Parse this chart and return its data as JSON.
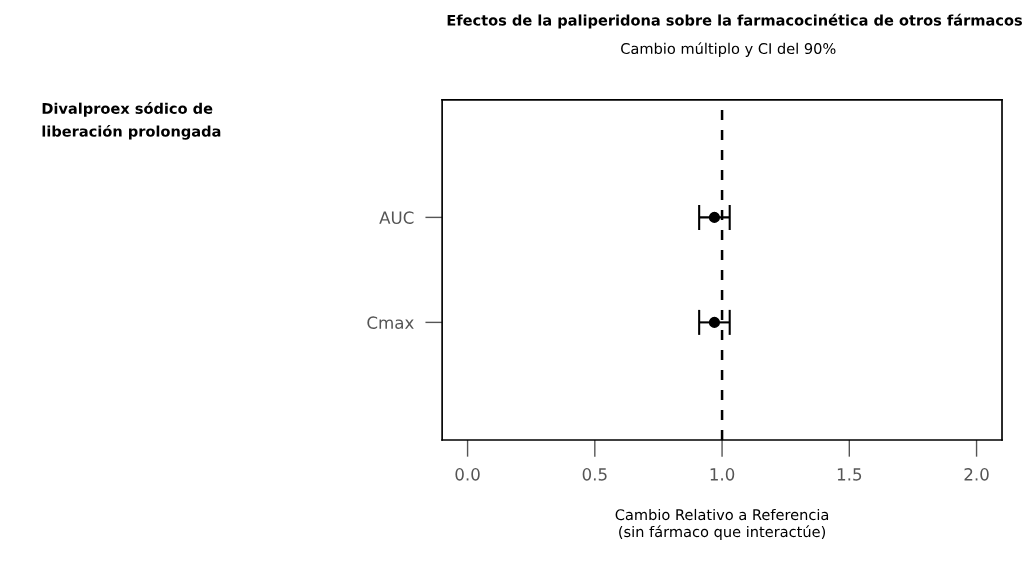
{
  "chart_data": {
    "type": "scatter",
    "orientation": "horizontal",
    "title": "Efectos de la paliperidona sobre la farmacocinética de otros fármacos",
    "subtitle": "Cambio múltiplo y CI del 90%",
    "xlabel": "Cambio Relativo a Referencia\n(sin fármaco que interactúe)",
    "categories": [
      "AUC",
      "Cmax"
    ],
    "values": [
      0.97,
      0.97
    ],
    "errors": [
      [
        0.91,
        1.03
      ],
      [
        0.91,
        1.03
      ]
    ],
    "color": "#000000",
    "marker": "circle",
    "xlim": [
      -0.1,
      2.1
    ],
    "xticks": [
      {
        "value": 0,
        "label": "0.0"
      },
      {
        "value": 0.5,
        "label": "0.5"
      },
      {
        "value": 1,
        "label": "1.0"
      },
      {
        "value": 1.5,
        "label": "1.5"
      },
      {
        "value": 2,
        "label": "2.0"
      }
    ],
    "ref_lines": [
      {
        "axis": "x",
        "value": 1,
        "line_style": "dashed",
        "color": "#000000"
      }
    ],
    "annotations": [
      "Divalproex sódico de\nliberación prolongada"
    ],
    "grid": false
  }
}
